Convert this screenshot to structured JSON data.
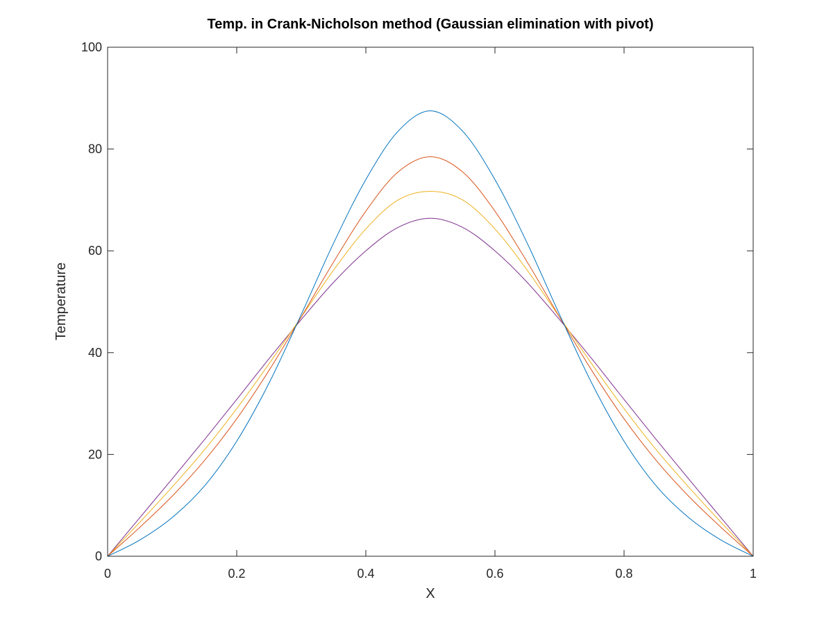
{
  "chart_data": {
    "type": "line",
    "title": "Temp. in Crank-Nicholson method (Gaussian elimination with pivot)",
    "xlabel": "X",
    "ylabel": "Temperature",
    "xlim": [
      0,
      1
    ],
    "ylim": [
      0,
      100
    ],
    "xticks": [
      "0",
      "0.2",
      "0.4",
      "0.6",
      "0.8",
      "1"
    ],
    "yticks": [
      "0",
      "20",
      "40",
      "60",
      "80",
      "100"
    ],
    "grid": false,
    "legend": "none",
    "x": [
      0,
      0.05,
      0.1,
      0.15,
      0.2,
      0.25,
      0.3,
      0.35,
      0.4,
      0.45,
      0.5,
      0.55,
      0.6,
      0.65,
      0.7,
      0.75,
      0.8,
      0.85,
      0.9,
      0.95,
      1
    ],
    "series": [
      {
        "color": "#0072BD",
        "values": [
          0,
          3.2,
          7.6,
          13.8,
          22.6,
          34.0,
          47.5,
          61.5,
          74.0,
          83.5,
          87.5,
          83.5,
          74.0,
          61.5,
          47.5,
          34.0,
          22.6,
          13.8,
          7.6,
          3.2,
          0
        ]
      },
      {
        "color": "#D95319",
        "values": [
          0,
          5.7,
          11.8,
          18.8,
          27.0,
          36.5,
          47.0,
          57.8,
          67.8,
          75.5,
          78.5,
          75.5,
          67.8,
          57.8,
          47.0,
          36.5,
          27.0,
          18.8,
          11.8,
          5.7,
          0
        ]
      },
      {
        "color": "#EDB120",
        "values": [
          0,
          6.7,
          13.6,
          20.9,
          29.0,
          37.8,
          47.0,
          56.2,
          64.3,
          70.0,
          71.7,
          70.0,
          64.3,
          56.2,
          47.0,
          37.8,
          29.0,
          20.9,
          13.6,
          6.7,
          0
        ]
      },
      {
        "color": "#7E2F8E",
        "values": [
          0,
          7.6,
          15.2,
          22.9,
          30.8,
          38.8,
          46.5,
          53.8,
          60.0,
          64.6,
          66.4,
          64.6,
          60.0,
          53.8,
          46.5,
          38.8,
          30.8,
          22.9,
          15.2,
          7.6,
          0
        ]
      }
    ]
  }
}
